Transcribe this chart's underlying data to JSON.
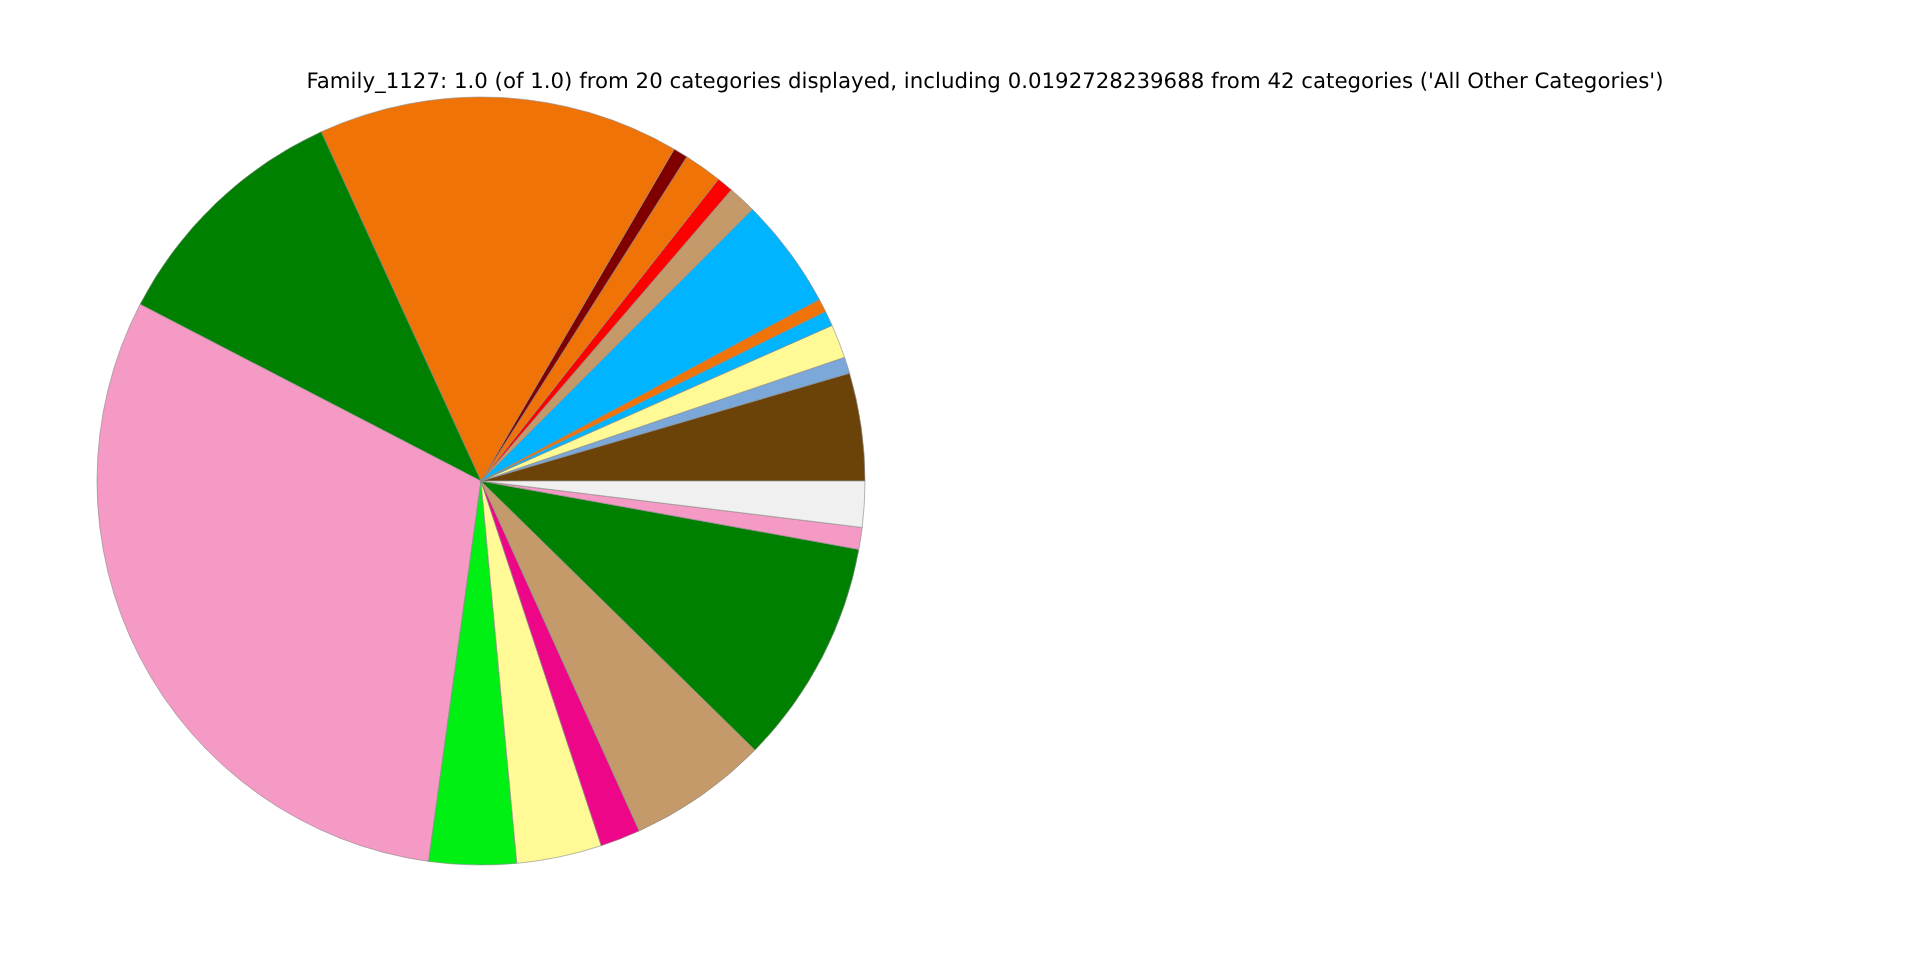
{
  "chart_data": {
    "type": "pie",
    "title": "Family_1127: 1.0 (of 1.0) from 20 categories displayed, including 0.0192728239688 from 42 categories ('All Other Categories')",
    "categories": [
      null,
      null,
      null,
      null,
      null,
      null,
      null,
      null,
      null,
      null,
      null,
      null,
      null,
      null,
      null,
      null,
      null,
      null,
      null,
      null
    ],
    "values": [
      4.53,
      0.69,
      1.42,
      0.64,
      0.56,
      4.67,
      1.19,
      0.69,
      1.61,
      0.61,
      15.22,
      10.56,
      30.43,
      3.67,
      3.58,
      1.69,
      5.89,
      9.5,
      0.92,
      1.93
    ],
    "colors": [
      "#6b4309",
      "#7ba7d9",
      "#fffa96",
      "#00b4ff",
      "#f07308",
      "#00b4ff",
      "#c49a6b",
      "#ff0000",
      "#f07308",
      "#800000",
      "#f07308",
      "#008000",
      "#f49ac4",
      "#00f014",
      "#fffa96",
      "#ee0688",
      "#c49a6b",
      "#008000",
      "#f49ac4",
      "#f0f0f0"
    ]
  }
}
